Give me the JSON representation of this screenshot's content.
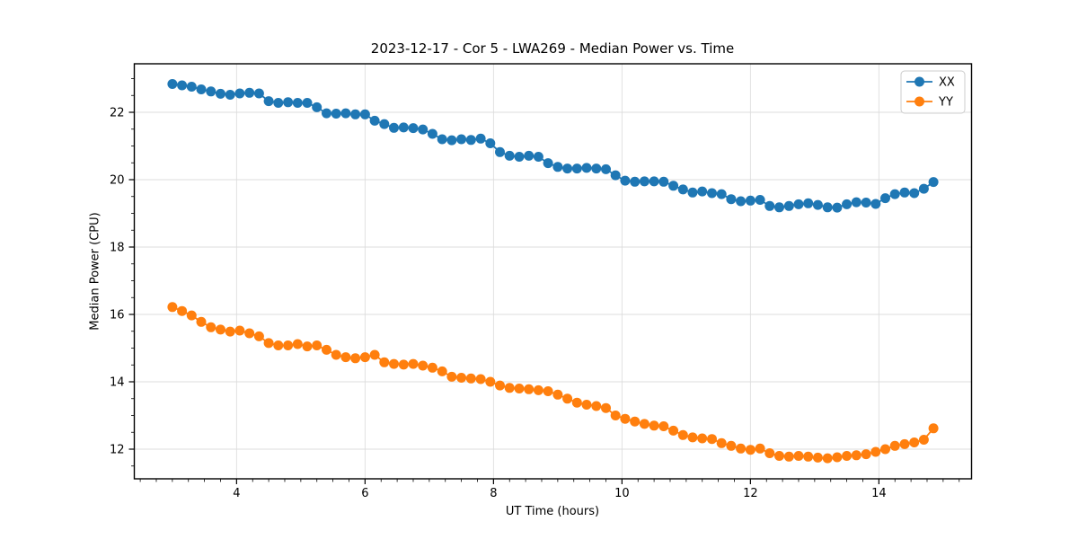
{
  "chart_data": {
    "type": "line",
    "title": "2023-12-17 - Cor 5 - LWA269 - Median Power vs. Time",
    "xlabel": "UT Time (hours)",
    "ylabel": "Median Power (CPU)",
    "xlim": [
      2.4075,
      15.4425
    ],
    "ylim": [
      11.12,
      23.44
    ],
    "xticks": [
      4,
      6,
      8,
      10,
      12,
      14
    ],
    "yticks": [
      12,
      14,
      16,
      18,
      20,
      22
    ],
    "minor_x_step": 0.25,
    "minor_y_step": 0.5,
    "grid": true,
    "grid_color": "#dddddd",
    "spine_color": "#000000",
    "marker": "o",
    "legend_position": "upper right",
    "x": [
      3.0,
      3.15,
      3.3,
      3.45,
      3.6,
      3.75,
      3.9,
      4.05,
      4.2,
      4.35,
      4.5,
      4.65,
      4.8,
      4.95,
      5.1,
      5.25,
      5.4,
      5.55,
      5.7,
      5.85,
      6.0,
      6.15,
      6.3,
      6.45,
      6.6,
      6.75,
      6.9,
      7.05,
      7.2,
      7.35,
      7.5,
      7.65,
      7.8,
      7.95,
      8.1,
      8.25,
      8.4,
      8.55,
      8.7,
      8.85,
      9.0,
      9.15,
      9.3,
      9.45,
      9.6,
      9.75,
      9.9,
      10.05,
      10.2,
      10.35,
      10.5,
      10.65,
      10.8,
      10.95,
      11.1,
      11.25,
      11.4,
      11.55,
      11.7,
      11.85,
      12.0,
      12.15,
      12.3,
      12.45,
      12.6,
      12.75,
      12.9,
      13.05,
      13.2,
      13.35,
      13.5,
      13.65,
      13.8,
      13.95,
      14.1,
      14.25,
      14.4,
      14.55,
      14.7,
      14.85
    ],
    "series": [
      {
        "name": "XX",
        "color": "#1f77b4",
        "values": [
          22.84,
          22.8,
          22.76,
          22.68,
          22.62,
          22.55,
          22.52,
          22.56,
          22.58,
          22.56,
          22.33,
          22.28,
          22.3,
          22.28,
          22.28,
          22.15,
          21.97,
          21.96,
          21.97,
          21.94,
          21.94,
          21.75,
          21.65,
          21.54,
          21.55,
          21.53,
          21.49,
          21.36,
          21.2,
          21.17,
          21.2,
          21.18,
          21.22,
          21.08,
          20.82,
          20.71,
          20.68,
          20.71,
          20.68,
          20.49,
          20.38,
          20.33,
          20.33,
          20.35,
          20.33,
          20.31,
          20.13,
          19.97,
          19.94,
          19.95,
          19.95,
          19.94,
          19.82,
          19.71,
          19.62,
          19.65,
          19.6,
          19.57,
          19.42,
          19.36,
          19.38,
          19.4,
          19.22,
          19.18,
          19.22,
          19.27,
          19.3,
          19.25,
          19.18,
          19.17,
          19.27,
          19.33,
          19.32,
          19.28,
          19.45,
          19.57,
          19.62,
          19.6,
          19.73,
          19.93
        ]
      },
      {
        "name": "YY",
        "color": "#ff7f0e",
        "values": [
          16.22,
          16.1,
          15.97,
          15.78,
          15.62,
          15.55,
          15.49,
          15.52,
          15.44,
          15.35,
          15.15,
          15.08,
          15.08,
          15.12,
          15.05,
          15.08,
          14.95,
          14.8,
          14.73,
          14.7,
          14.73,
          14.8,
          14.58,
          14.53,
          14.51,
          14.53,
          14.48,
          14.42,
          14.31,
          14.15,
          14.12,
          14.1,
          14.08,
          14.0,
          13.89,
          13.82,
          13.8,
          13.78,
          13.75,
          13.72,
          13.62,
          13.5,
          13.38,
          13.32,
          13.28,
          13.22,
          13.0,
          12.9,
          12.82,
          12.75,
          12.7,
          12.68,
          12.55,
          12.42,
          12.35,
          12.32,
          12.3,
          12.18,
          12.1,
          12.02,
          11.98,
          12.02,
          11.88,
          11.8,
          11.78,
          11.8,
          11.78,
          11.75,
          11.73,
          11.76,
          11.8,
          11.82,
          11.85,
          11.92,
          12.0,
          12.1,
          12.15,
          12.2,
          12.28,
          12.62
        ]
      }
    ]
  }
}
